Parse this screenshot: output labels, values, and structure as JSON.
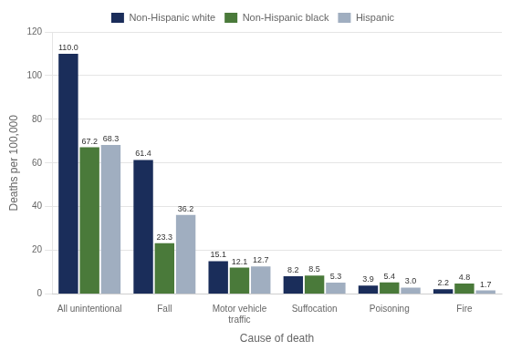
{
  "chart_data": {
    "type": "bar",
    "categories": [
      "All unintentional",
      "Fall",
      "Motor vehicle\ntraffic",
      "Suffocation",
      "Poisoning",
      "Fire"
    ],
    "series": [
      {
        "name": "Non-Hispanic white",
        "color": "#1a2d5a",
        "values": [
          110.0,
          61.4,
          15.1,
          8.2,
          3.9,
          2.2
        ],
        "value_labels": [
          "110.0",
          "61.4",
          "15.1",
          "8.2",
          "3.9",
          "2.2"
        ]
      },
      {
        "name": "Non-Hispanic black",
        "color": "#4a7a3a",
        "values": [
          67.2,
          23.3,
          12.1,
          8.5,
          5.4,
          4.8
        ],
        "value_labels": [
          "67.2",
          "23.3",
          "12.1",
          "8.5",
          "5.4",
          "4.8"
        ]
      },
      {
        "name": "Hispanic",
        "color": "#a0aec0",
        "values": [
          68.3,
          36.2,
          12.7,
          5.3,
          3.0,
          1.7
        ],
        "value_labels": [
          "68.3",
          "36.2",
          "12.7",
          "5.3",
          "3.0",
          "1.7"
        ]
      }
    ],
    "xlabel": "Cause of death",
    "ylabel": "Deaths per 100,000",
    "ylim": [
      0,
      120
    ],
    "yticks": [
      0,
      20,
      40,
      60,
      80,
      100,
      120
    ],
    "grid": true,
    "legend": "top",
    "data_labels": true
  }
}
